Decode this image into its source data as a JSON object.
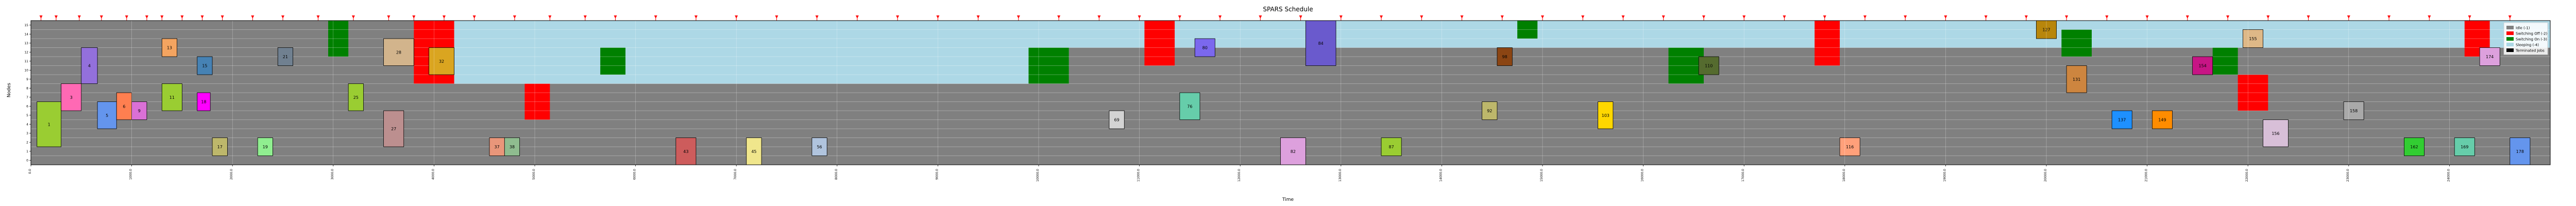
{
  "chart_data": {
    "type": "gantt",
    "title": "SPARS Schedule",
    "xlabel": "Time",
    "ylabel": "Nodes",
    "xlim": [
      0,
      25000
    ],
    "ylim": [
      0,
      16
    ],
    "grid": true,
    "legend_position": "top-right",
    "legend": [
      {
        "name": "Idle (-1)",
        "color": "#808080"
      },
      {
        "name": "Switching Off (-2)",
        "color": "#ff0000"
      },
      {
        "name": "Switching On (-3)",
        "color": "#008000"
      },
      {
        "name": "Sleeping (-4)",
        "color": "#add8e6"
      },
      {
        "name": "Terminated Jobs",
        "color": "#000000"
      }
    ],
    "y_ticks": [
      "0",
      "1",
      "2",
      "3",
      "4",
      "5",
      "6",
      "7",
      "8",
      "9",
      "10",
      "11",
      "12",
      "13",
      "14",
      "15"
    ],
    "x_ticks": [
      0,
      1000,
      2000,
      3000,
      4000,
      5000,
      6000,
      7000,
      8000,
      9000,
      10000,
      11000,
      12000,
      13000,
      14000,
      15000,
      16000,
      17000,
      18000,
      19000,
      20000,
      21000,
      22000,
      23000,
      24000
    ],
    "x_tick_labels": [
      "0.0",
      "1000.0",
      "2000.0",
      "3000.0",
      "4000.0",
      "5000.0",
      "6000.0",
      "7000.0",
      "8000.0",
      "9000.0",
      "10000.0",
      "11000.0",
      "12000.0",
      "13000.0",
      "14000.0",
      "15000.0",
      "16000.0",
      "17000.0",
      "18000.0",
      "19000.0",
      "20000.0",
      "21000.0",
      "22000.0",
      "23000.0",
      "24000.0"
    ],
    "state_bands": [
      {
        "state": "Sleeping (-4)",
        "x0": 4200,
        "x1": 25000,
        "y0": 13,
        "y1": 16
      },
      {
        "state": "Sleeping (-4)",
        "x0": 4200,
        "x1": 10300,
        "y0": 9,
        "y1": 13
      }
    ],
    "switching_off": [
      {
        "x0": 3800,
        "x1": 4200,
        "y0": 9,
        "y1": 16
      },
      {
        "x0": 4900,
        "x1": 5150,
        "y0": 5,
        "y1": 9
      },
      {
        "x0": 11050,
        "x1": 11350,
        "y0": 11,
        "y1": 16
      },
      {
        "x0": 17700,
        "x1": 17950,
        "y0": 11,
        "y1": 16
      },
      {
        "x0": 21900,
        "x1": 22200,
        "y0": 6,
        "y1": 10
      },
      {
        "x0": 24150,
        "x1": 24400,
        "y0": 12,
        "y1": 16
      }
    ],
    "switching_on": [
      {
        "x0": 2950,
        "x1": 3150,
        "y0": 12,
        "y1": 16
      },
      {
        "x0": 5650,
        "x1": 5900,
        "y0": 10,
        "y1": 13
      },
      {
        "x0": 9900,
        "x1": 10300,
        "y0": 9,
        "y1": 13
      },
      {
        "x0": 14750,
        "x1": 14950,
        "y0": 14,
        "y1": 16
      },
      {
        "x0": 16250,
        "x1": 16600,
        "y0": 9,
        "y1": 13
      },
      {
        "x0": 20150,
        "x1": 20450,
        "y0": 12,
        "y1": 15
      },
      {
        "x0": 21650,
        "x1": 21900,
        "y0": 10,
        "y1": 13
      }
    ],
    "jobs": [
      {
        "id": "1",
        "x0": 60,
        "x1": 300,
        "y0": 2,
        "y1": 7,
        "color": "#9acd32"
      },
      {
        "id": "3",
        "x0": 300,
        "x1": 500,
        "y0": 6,
        "y1": 9,
        "color": "#ff69b4"
      },
      {
        "id": "4",
        "x0": 500,
        "x1": 660,
        "y0": 9,
        "y1": 13,
        "color": "#9370db"
      },
      {
        "id": "5",
        "x0": 660,
        "x1": 850,
        "y0": 4,
        "y1": 7,
        "color": "#6495ed"
      },
      {
        "id": "6",
        "x0": 850,
        "x1": 1000,
        "y0": 5,
        "y1": 8,
        "color": "#ff7f50"
      },
      {
        "id": "9",
        "x0": 1000,
        "x1": 1150,
        "y0": 5,
        "y1": 7,
        "color": "#da70d6"
      },
      {
        "id": "11",
        "x0": 1300,
        "x1": 1500,
        "y0": 6,
        "y1": 9,
        "color": "#9acd32"
      },
      {
        "id": "13",
        "x0": 1300,
        "x1": 1450,
        "y0": 12,
        "y1": 14,
        "color": "#f4a460"
      },
      {
        "id": "15",
        "x0": 1650,
        "x1": 1800,
        "y0": 10,
        "y1": 12,
        "color": "#4682b4"
      },
      {
        "id": "17",
        "x0": 1800,
        "x1": 1950,
        "y0": 1,
        "y1": 3,
        "color": "#bdb76b"
      },
      {
        "id": "18",
        "x0": 1650,
        "x1": 1780,
        "y0": 6,
        "y1": 8,
        "color": "#ff00ff"
      },
      {
        "id": "19",
        "x0": 2250,
        "x1": 2400,
        "y0": 1,
        "y1": 3,
        "color": "#90ee90"
      },
      {
        "id": "21",
        "x0": 2450,
        "x1": 2600,
        "y0": 11,
        "y1": 13,
        "color": "#708090"
      },
      {
        "id": "25",
        "x0": 3150,
        "x1": 3300,
        "y0": 6,
        "y1": 9,
        "color": "#9acd32"
      },
      {
        "id": "27",
        "x0": 3500,
        "x1": 3700,
        "y0": 2,
        "y1": 6,
        "color": "#bc8f8f"
      },
      {
        "id": "28",
        "x0": 3500,
        "x1": 3800,
        "y0": 11,
        "y1": 14,
        "color": "#d2b48c"
      },
      {
        "id": "32",
        "x0": 3950,
        "x1": 4200,
        "y0": 10,
        "y1": 13,
        "color": "#daa520"
      },
      {
        "id": "37",
        "x0": 4550,
        "x1": 4700,
        "y0": 1,
        "y1": 3,
        "color": "#e9967a"
      },
      {
        "id": "38",
        "x0": 4700,
        "x1": 4850,
        "y0": 1,
        "y1": 3,
        "color": "#8fbc8f"
      },
      {
        "id": "43",
        "x0": 6400,
        "x1": 6600,
        "y0": 0,
        "y1": 3,
        "color": "#cd5c5c"
      },
      {
        "id": "45",
        "x0": 7100,
        "x1": 7250,
        "y0": 0,
        "y1": 3,
        "color": "#f0e68c"
      },
      {
        "id": "56",
        "x0": 7750,
        "x1": 7900,
        "y0": 1,
        "y1": 3,
        "color": "#b0c4de"
      },
      {
        "id": "69",
        "x0": 10700,
        "x1": 10850,
        "y0": 4,
        "y1": 6,
        "color": "#d3d3d3"
      },
      {
        "id": "76",
        "x0": 11400,
        "x1": 11600,
        "y0": 5,
        "y1": 8,
        "color": "#66cdaa"
      },
      {
        "id": "80",
        "x0": 11550,
        "x1": 11750,
        "y0": 12,
        "y1": 14,
        "color": "#7b68ee"
      },
      {
        "id": "82",
        "x0": 12400,
        "x1": 12650,
        "y0": 0,
        "y1": 3,
        "color": "#dda0dd"
      },
      {
        "id": "84",
        "x0": 12650,
        "x1": 12950,
        "y0": 11,
        "y1": 16,
        "color": "#6a5acd"
      },
      {
        "id": "87",
        "x0": 13400,
        "x1": 13600,
        "y0": 1,
        "y1": 3,
        "color": "#9acd32"
      },
      {
        "id": "92",
        "x0": 14400,
        "x1": 14550,
        "y0": 5,
        "y1": 7,
        "color": "#bdb76b"
      },
      {
        "id": "98",
        "x0": 14550,
        "x1": 14700,
        "y0": 11,
        "y1": 13,
        "color": "#8b4513"
      },
      {
        "id": "103",
        "x0": 15550,
        "x1": 15700,
        "y0": 4,
        "y1": 7,
        "color": "#ffd700"
      },
      {
        "id": "110",
        "x0": 16550,
        "x1": 16750,
        "y0": 10,
        "y1": 12,
        "color": "#556b2f"
      },
      {
        "id": "116",
        "x0": 17950,
        "x1": 18150,
        "y0": 1,
        "y1": 3,
        "color": "#ffa07a"
      },
      {
        "id": "127",
        "x0": 19900,
        "x1": 20100,
        "y0": 14,
        "y1": 16,
        "color": "#b8860b"
      },
      {
        "id": "131",
        "x0": 20200,
        "x1": 20400,
        "y0": 8,
        "y1": 11,
        "color": "#cd853f"
      },
      {
        "id": "137",
        "x0": 20650,
        "x1": 20850,
        "y0": 4,
        "y1": 6,
        "color": "#1e90ff"
      },
      {
        "id": "149",
        "x0": 21050,
        "x1": 21250,
        "y0": 4,
        "y1": 6,
        "color": "#ff8c00"
      },
      {
        "id": "154",
        "x0": 21450,
        "x1": 21650,
        "y0": 10,
        "y1": 12,
        "color": "#c71585"
      },
      {
        "id": "155",
        "x0": 21950,
        "x1": 22150,
        "y0": 13,
        "y1": 15,
        "color": "#deb887"
      },
      {
        "id": "156",
        "x0": 22150,
        "x1": 22400,
        "y0": 2,
        "y1": 5,
        "color": "#d8bfd8"
      },
      {
        "id": "158",
        "x0": 22950,
        "x1": 23150,
        "y0": 5,
        "y1": 7,
        "color": "#a9a9a9"
      },
      {
        "id": "162",
        "x0": 23550,
        "x1": 23750,
        "y0": 1,
        "y1": 3,
        "color": "#32cd32"
      },
      {
        "id": "169",
        "x0": 24050,
        "x1": 24250,
        "y0": 1,
        "y1": 3,
        "color": "#66cdaa"
      },
      {
        "id": "174",
        "x0": 24300,
        "x1": 24500,
        "y0": 11,
        "y1": 13,
        "color": "#dda0dd"
      },
      {
        "id": "178",
        "x0": 24600,
        "x1": 24800,
        "y0": 0,
        "y1": 3,
        "color": "#6495ed"
      }
    ],
    "markers": [
      100,
      250,
      480,
      700,
      950,
      1150,
      1300,
      1500,
      1700,
      1900,
      2200,
      2500,
      2850,
      3200,
      3550,
      3800,
      4100,
      4400,
      4800,
      5150,
      5500,
      5800,
      6200,
      6600,
      7000,
      7400,
      7800,
      8200,
      8600,
      9000,
      9400,
      9800,
      10200,
      10600,
      11000,
      11400,
      11800,
      12200,
      12600,
      13000,
      13400,
      13800,
      14200,
      14600,
      15000,
      15400,
      15800,
      16200,
      16600,
      17000,
      17400,
      17800,
      18200,
      18600,
      19000,
      19400,
      19800,
      20200,
      20600,
      21000,
      21400,
      21800,
      22200,
      22600,
      23000,
      23400,
      23800,
      24200,
      24600
    ]
  }
}
